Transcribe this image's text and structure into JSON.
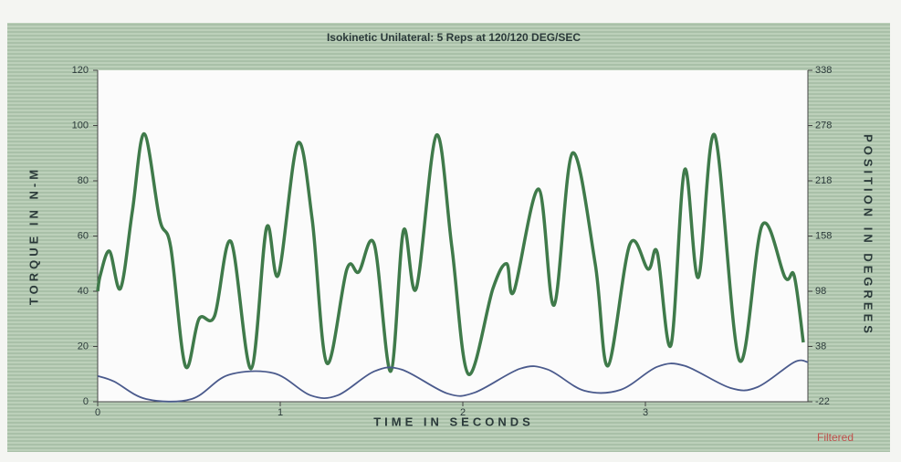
{
  "chart_data": {
    "type": "line",
    "title": "Isokinetic Unilateral: 5 Reps  at 120/120 DEG/SEC",
    "xlabel": "TIME IN SECONDS",
    "ylabel": "TORQUE IN N-M",
    "y2label": "POSITION IN DEGREES",
    "annotation": "Filtered",
    "xlim": [
      0,
      3.89
    ],
    "xticks": [
      0,
      1,
      2,
      3
    ],
    "ylim": [
      0,
      120
    ],
    "yticks": [
      0,
      20,
      40,
      60,
      80,
      100,
      120
    ],
    "y2lim": [
      -22,
      338
    ],
    "y2ticks": [
      -22,
      38,
      98,
      158,
      218,
      278,
      338
    ],
    "series": [
      {
        "name": "Torque",
        "color": "#3f7a4a",
        "x": [
          0,
          0.015,
          0.065,
          0.125,
          0.19,
          0.255,
          0.34,
          0.4,
          0.48,
          0.555,
          0.64,
          0.73,
          0.84,
          0.925,
          0.99,
          1.095,
          1.175,
          1.255,
          1.365,
          1.43,
          1.515,
          1.605,
          1.675,
          1.745,
          1.855,
          1.94,
          2.03,
          2.165,
          2.24,
          2.28,
          2.415,
          2.5,
          2.6,
          2.725,
          2.795,
          2.915,
          3.015,
          3.065,
          3.14,
          3.215,
          3.29,
          3.38,
          3.515,
          3.64,
          3.765,
          3.815,
          3.865
        ],
        "values": [
          40,
          46,
          54.5,
          41,
          69,
          97,
          66,
          56,
          13,
          30,
          31,
          58,
          12,
          63,
          46,
          93.5,
          66,
          14,
          48,
          47,
          57,
          11,
          62,
          41,
          96.5,
          56,
          10,
          41,
          50,
          40,
          77,
          35,
          90,
          50,
          13,
          57,
          48,
          54,
          20.5,
          84,
          45,
          96.5,
          15,
          64,
          45,
          45.6,
          21.5
        ]
      },
      {
        "name": "Position",
        "color": "#4a5a8c",
        "axis": "y2",
        "x": [
          0,
          0.09,
          0.265,
          0.515,
          0.715,
          0.965,
          1.165,
          1.315,
          1.515,
          1.665,
          1.915,
          2.065,
          2.315,
          2.465,
          2.665,
          2.865,
          3.065,
          3.215,
          3.465,
          3.615,
          3.815,
          3.89
        ],
        "values": [
          6,
          0,
          -19,
          -19,
          7,
          9,
          -15,
          -15,
          11,
          13,
          -13,
          -12,
          14,
          13,
          -10,
          -9,
          16,
          17,
          -7,
          -6,
          21,
          21
        ]
      }
    ]
  }
}
